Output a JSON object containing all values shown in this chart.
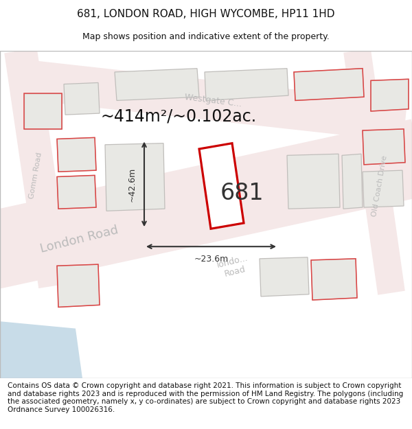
{
  "title": "681, LONDON ROAD, HIGH WYCOMBE, HP11 1HD",
  "subtitle": "Map shows position and indicative extent of the property.",
  "footer": "Contains OS data © Crown copyright and database right 2021. This information is subject to Crown copyright and database rights 2023 and is reproduced with the permission of HM Land Registry. The polygons (including the associated geometry, namely x, y co-ordinates) are subject to Crown copyright and database rights 2023 Ordnance Survey 100026316.",
  "area_label": "~414m²/~0.102ac.",
  "property_label": "681",
  "dim_height": "~42.6m",
  "dim_width": "~23.6m",
  "map_bg": "#f2f0ee",
  "road_fill": "#f5e8e8",
  "road_edge": "#e8c8c8",
  "building_fill": "#e8e8e4",
  "building_stroke": "#c0bebb",
  "property_stroke": "#cc0000",
  "property_fill": "#ffffff",
  "red_outline": "#dd4444",
  "water_color": "#c8dce8",
  "dim_color": "#333333",
  "road_label_color": "#bbbbbb",
  "title_fontsize": 11,
  "subtitle_fontsize": 9,
  "footer_fontsize": 7.5,
  "area_fontsize": 17,
  "label_681_fontsize": 24,
  "dim_fontsize": 9
}
